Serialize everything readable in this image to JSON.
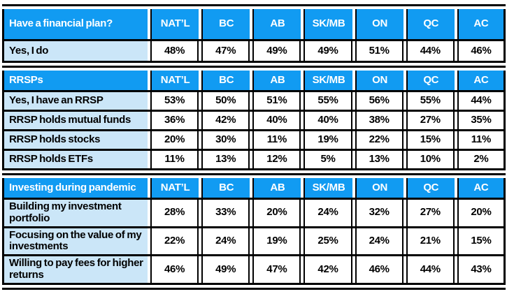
{
  "colors": {
    "header_blue": "#119BF2",
    "label_light_blue": "#CBE6F8",
    "border_black": "#000000",
    "header_text": "#FFFFFF",
    "body_text": "#000000"
  },
  "chart_data": {
    "type": "table",
    "columns": [
      "NAT’L",
      "BC",
      "AB",
      "SK/MB",
      "ON",
      "QC",
      "AC"
    ],
    "sections": [
      {
        "title": "Have a financial plan?",
        "rows": [
          {
            "label": "Yes, I do",
            "values": [
              "48%",
              "47%",
              "49%",
              "49%",
              "51%",
              "44%",
              "46%"
            ]
          }
        ]
      },
      {
        "title": "RRSPs",
        "rows": [
          {
            "label": "Yes, I have an RRSP",
            "values": [
              "53%",
              "50%",
              "51%",
              "55%",
              "56%",
              "55%",
              "44%"
            ]
          },
          {
            "label": "RRSP holds mutual funds",
            "values": [
              "36%",
              "42%",
              "40%",
              "40%",
              "38%",
              "27%",
              "35%"
            ]
          },
          {
            "label": "RRSP holds stocks",
            "values": [
              "20%",
              "30%",
              "11%",
              "19%",
              "22%",
              "15%",
              "11%"
            ]
          },
          {
            "label": "RRSP holds ETFs",
            "values": [
              "11%",
              "13%",
              "12%",
              "5%",
              "13%",
              "10%",
              "2%"
            ]
          }
        ]
      },
      {
        "title": "Investing during pandemic",
        "rows": [
          {
            "label": "Building my investment portfolio",
            "values": [
              "28%",
              "33%",
              "20%",
              "24%",
              "32%",
              "27%",
              "20%"
            ]
          },
          {
            "label": "Focusing on the value of my investments",
            "values": [
              "22%",
              "24%",
              "19%",
              "25%",
              "24%",
              "21%",
              "15%"
            ]
          },
          {
            "label": "Willing to pay fees for higher returns",
            "values": [
              "46%",
              "49%",
              "47%",
              "42%",
              "46%",
              "44%",
              "43%"
            ]
          }
        ]
      }
    ]
  }
}
